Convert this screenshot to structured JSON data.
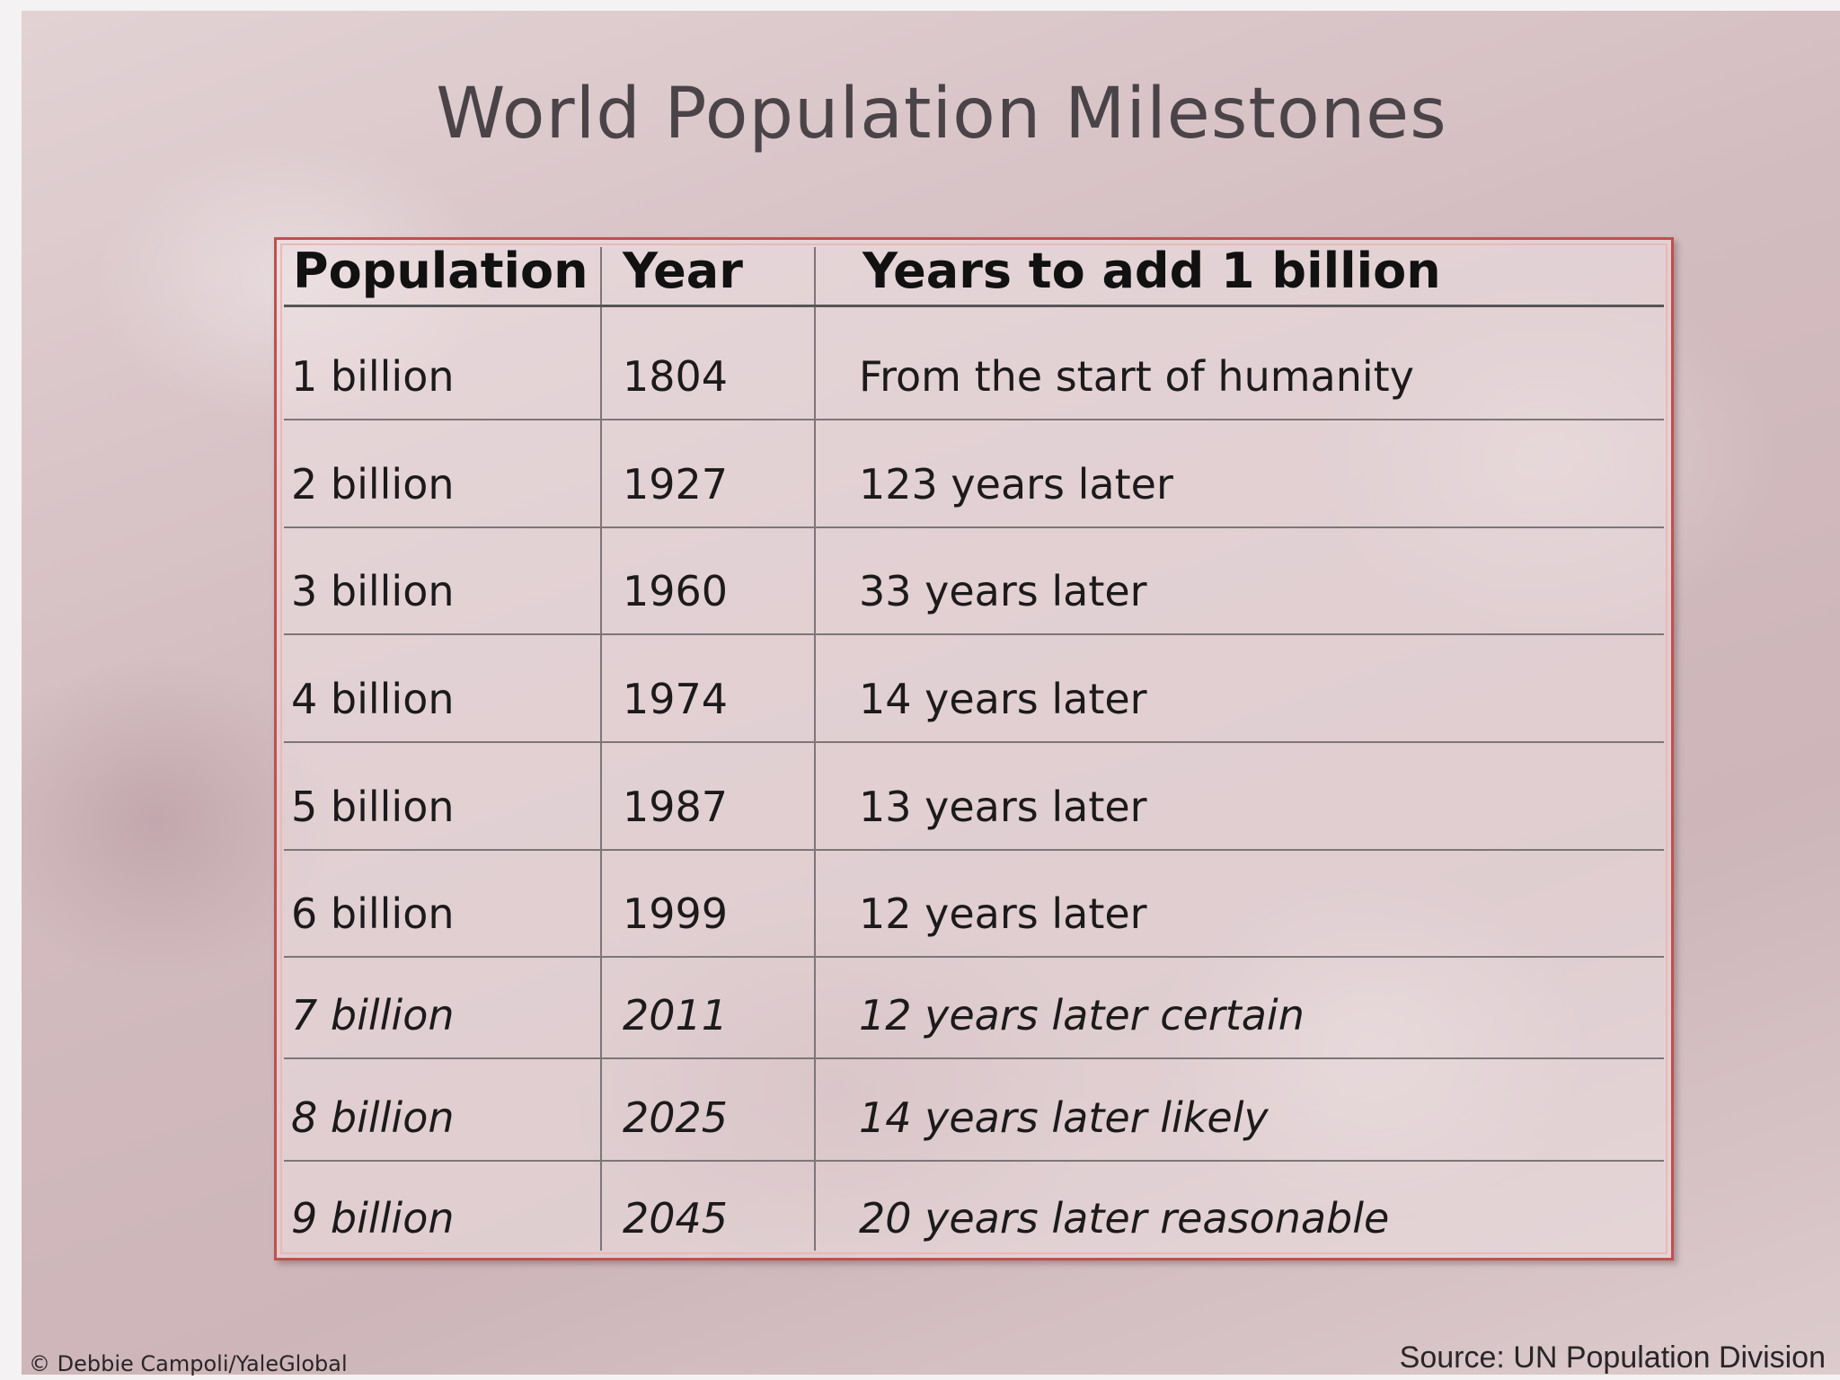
{
  "header": {
    "title": "World Population Milestones"
  },
  "table": {
    "columns": [
      "Population",
      "Year",
      "Years to add 1 billion"
    ],
    "rows": [
      [
        "1 billion",
        "1804",
        "From the start of humanity"
      ],
      [
        "2 billion",
        "1927",
        "123 years later"
      ],
      [
        "3 billion",
        "1960",
        "33 years later"
      ],
      [
        "4 billion",
        "1974",
        "14 years later"
      ],
      [
        "5 billion",
        "1987",
        "13 years later"
      ],
      [
        "6 billion",
        "1999",
        "12 years later"
      ],
      [
        "7 billion",
        "2011",
        "12 years later certain"
      ],
      [
        "8 billion",
        "2025",
        "14 years later likely"
      ],
      [
        "9 billion",
        "2045",
        "20 years later reasonable"
      ]
    ]
  },
  "footer": {
    "credit": "© Debbie Campoli/YaleGlobal",
    "source": "Source:  UN Population Division"
  }
}
